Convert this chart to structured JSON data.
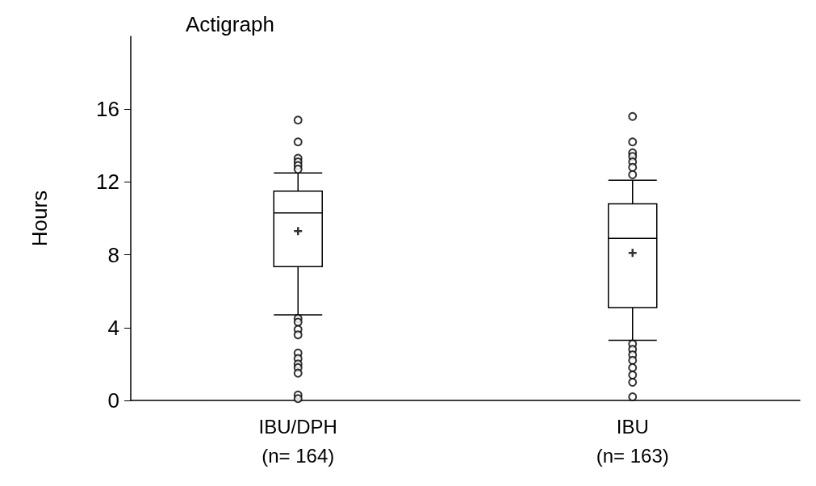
{
  "chart_data": {
    "type": "box",
    "title": "Actigraph",
    "ylabel": "Hours",
    "categories": [
      "IBU/DPH\n(n= 164)",
      "IBU\n(n= 163)"
    ],
    "boxes": [
      {
        "low": 4.7,
        "q1": 7.35,
        "median": 10.3,
        "q3": 11.5,
        "high": 12.5,
        "mean": 9.3,
        "outliers": [
          15.4,
          14.2,
          13.3,
          13.1,
          12.9,
          12.7,
          4.5,
          4.3,
          3.9,
          3.6,
          2.6,
          2.3,
          2.0,
          1.8,
          1.5,
          0.3,
          0.1
        ]
      },
      {
        "low": 3.3,
        "q1": 5.1,
        "median": 8.9,
        "q3": 10.8,
        "high": 12.1,
        "mean": 8.1,
        "outliers": [
          15.6,
          14.2,
          13.6,
          13.4,
          13.1,
          12.8,
          12.4,
          3.1,
          2.8,
          2.5,
          2.2,
          1.8,
          1.4,
          1.0,
          0.2
        ]
      }
    ],
    "color": "#000000",
    "ylim": [
      0,
      20
    ],
    "yticks": [
      0,
      4,
      8,
      12,
      16
    ],
    "grid": false
  }
}
